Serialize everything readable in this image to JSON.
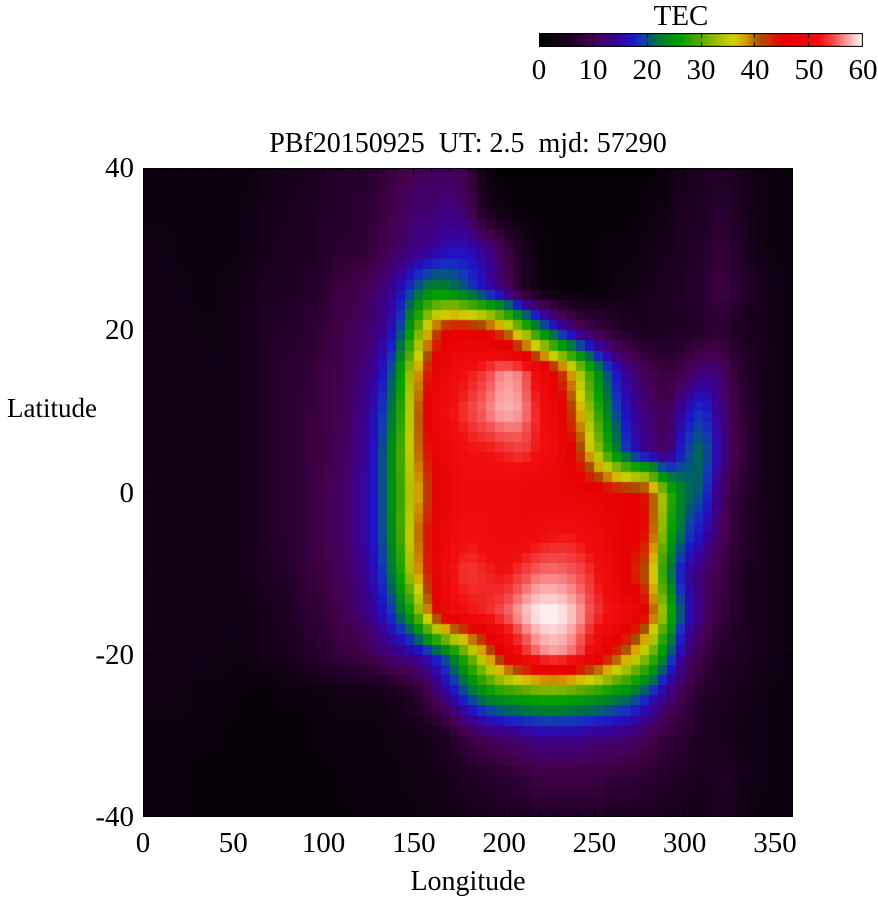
{
  "colorbar": {
    "label": "TEC",
    "tick_labels": [
      "0",
      "10",
      "20",
      "30",
      "40",
      "50",
      "60"
    ],
    "range": [
      0,
      60
    ]
  },
  "plot": {
    "title": "PBf20150925  UT: 2.5  mjd: 57290",
    "xlabel": "Longitude",
    "ylabel": "Latitude",
    "x_tick_labels": [
      "0",
      "50",
      "100",
      "150",
      "200",
      "250",
      "300",
      "350"
    ],
    "x_tick_values": [
      0,
      50,
      100,
      150,
      200,
      250,
      300,
      350
    ],
    "y_tick_labels": [
      "40",
      "20",
      "0",
      "-20",
      "-40"
    ],
    "y_tick_values": [
      40,
      20,
      0,
      -20,
      -40
    ]
  },
  "chart_data": {
    "type": "heatmap",
    "title": "PBf20150925  UT: 2.5  mjd: 57290",
    "xlabel": "Longitude",
    "ylabel": "Latitude",
    "colorbar_label": "TEC",
    "xlim": [
      0,
      360
    ],
    "ylim": [
      -40,
      40
    ],
    "value_range": [
      0,
      60
    ],
    "grid": false,
    "x": [
      0,
      10,
      20,
      30,
      40,
      50,
      60,
      70,
      80,
      90,
      100,
      110,
      120,
      130,
      140,
      150,
      160,
      170,
      180,
      190,
      200,
      210,
      220,
      230,
      240,
      250,
      260,
      270,
      280,
      290,
      300,
      310,
      320,
      330,
      340,
      350,
      360
    ],
    "y": [
      40,
      35,
      30,
      25,
      20,
      15,
      10,
      5,
      0,
      -5,
      -10,
      -15,
      -20,
      -25,
      -30,
      -35,
      -40
    ],
    "values": [
      [
        2,
        2,
        2,
        2,
        2,
        2,
        2,
        4,
        4,
        4,
        5,
        6,
        6,
        7,
        9,
        10,
        11,
        11,
        9,
        2,
        1,
        1,
        1,
        1,
        1,
        1,
        1,
        1,
        1,
        2,
        4,
        5,
        6,
        4,
        3,
        2,
        2
      ],
      [
        2,
        2,
        2,
        2,
        2,
        2,
        3,
        4,
        4,
        5,
        6,
        6,
        7,
        8,
        10,
        12,
        12,
        13,
        11,
        4,
        2,
        1,
        1,
        1,
        1,
        1,
        1,
        1,
        2,
        3,
        5,
        5,
        7,
        5,
        3,
        2,
        2
      ],
      [
        3,
        3,
        2,
        2,
        2,
        2,
        3,
        4,
        5,
        5,
        6,
        7,
        7,
        9,
        11,
        13,
        14,
        16,
        16,
        14,
        10,
        5,
        2,
        1,
        1,
        1,
        2,
        2,
        3,
        4,
        5,
        6,
        8,
        6,
        4,
        2,
        2
      ],
      [
        3,
        3,
        3,
        2,
        2,
        3,
        4,
        5,
        5,
        6,
        7,
        9,
        10,
        12,
        15,
        20,
        24,
        23,
        20,
        16,
        12,
        6,
        2,
        1,
        1,
        1,
        2,
        3,
        4,
        5,
        6,
        7,
        9,
        7,
        4,
        3,
        2
      ],
      [
        3,
        3,
        3,
        3,
        2,
        3,
        4,
        6,
        6,
        7,
        8,
        10,
        11,
        13,
        17,
        28,
        40,
        46,
        46,
        44,
        40,
        32,
        24,
        17,
        12,
        9,
        7,
        5,
        4,
        5,
        5,
        6,
        7,
        5,
        4,
        3,
        2
      ],
      [
        3,
        3,
        3,
        3,
        3,
        3,
        4,
        6,
        7,
        7,
        9,
        10,
        12,
        15,
        22,
        36,
        46,
        50,
        52,
        54,
        57,
        56,
        50,
        44,
        36,
        26,
        18,
        13,
        10,
        8,
        10,
        13,
        12,
        7,
        5,
        3,
        2
      ],
      [
        3,
        3,
        3,
        3,
        3,
        3,
        4,
        6,
        7,
        8,
        9,
        10,
        13,
        17,
        24,
        38,
        48,
        52,
        54,
        56,
        58,
        57,
        52,
        48,
        40,
        30,
        21,
        15,
        12,
        10,
        16,
        19,
        13,
        8,
        5,
        3,
        2
      ],
      [
        3,
        3,
        3,
        3,
        3,
        3,
        4,
        6,
        7,
        8,
        9,
        11,
        13,
        18,
        26,
        38,
        46,
        50,
        52,
        52,
        53,
        54,
        52,
        50,
        44,
        35,
        25,
        17,
        13,
        11,
        19,
        22,
        14,
        9,
        5,
        3,
        2
      ],
      [
        4,
        3,
        3,
        3,
        3,
        3,
        4,
        6,
        7,
        8,
        10,
        11,
        14,
        18,
        26,
        36,
        44,
        48,
        50,
        50,
        50,
        49,
        48,
        48,
        48,
        47,
        46,
        45,
        44,
        30,
        22,
        20,
        12,
        7,
        5,
        3,
        2
      ],
      [
        4,
        3,
        3,
        3,
        3,
        3,
        4,
        6,
        7,
        8,
        10,
        11,
        14,
        18,
        26,
        38,
        46,
        50,
        52,
        51,
        50,
        50,
        51,
        52,
        52,
        50,
        48,
        46,
        44,
        28,
        20,
        16,
        11,
        7,
        4,
        3,
        2
      ],
      [
        4,
        3,
        3,
        3,
        3,
        3,
        4,
        5,
        6,
        8,
        9,
        11,
        13,
        17,
        24,
        36,
        46,
        52,
        54,
        53,
        52,
        54,
        56,
        56,
        55,
        53,
        49,
        44,
        40,
        24,
        15,
        12,
        9,
        6,
        4,
        3,
        2
      ],
      [
        4,
        3,
        3,
        3,
        3,
        3,
        3,
        4,
        5,
        7,
        8,
        10,
        12,
        15,
        20,
        28,
        42,
        50,
        52,
        53,
        55,
        58,
        60,
        60,
        58,
        54,
        52,
        50,
        44,
        30,
        18,
        12,
        8,
        6,
        4,
        3,
        2
      ],
      [
        3,
        3,
        3,
        3,
        3,
        2,
        3,
        4,
        4,
        6,
        7,
        8,
        9,
        11,
        13,
        14,
        17,
        22,
        30,
        38,
        46,
        52,
        56,
        57,
        55,
        50,
        44,
        38,
        32,
        22,
        13,
        9,
        6,
        5,
        4,
        3,
        2
      ],
      [
        3,
        3,
        3,
        2,
        2,
        2,
        1,
        1,
        2,
        2,
        2,
        3,
        3,
        3,
        4,
        6,
        10,
        15,
        20,
        24,
        26,
        27,
        28,
        28,
        27,
        26,
        24,
        22,
        18,
        13,
        9,
        6,
        5,
        4,
        3,
        2,
        2
      ],
      [
        2,
        2,
        2,
        2,
        2,
        1,
        1,
        1,
        1,
        1,
        2,
        2,
        2,
        2,
        3,
        3,
        4,
        6,
        9,
        11,
        12,
        13,
        14,
        14,
        14,
        13,
        13,
        12,
        10,
        8,
        7,
        5,
        4,
        3,
        3,
        2,
        2
      ],
      [
        2,
        2,
        2,
        1,
        1,
        1,
        1,
        1,
        1,
        1,
        1,
        2,
        2,
        2,
        2,
        3,
        3,
        4,
        5,
        6,
        7,
        8,
        9,
        9,
        9,
        9,
        8,
        8,
        7,
        6,
        5,
        4,
        6,
        4,
        3,
        2,
        2
      ],
      [
        2,
        2,
        2,
        1,
        1,
        1,
        1,
        1,
        1,
        1,
        1,
        1,
        2,
        2,
        2,
        2,
        3,
        3,
        4,
        4,
        5,
        5,
        6,
        6,
        6,
        6,
        5,
        5,
        5,
        4,
        4,
        3,
        5,
        4,
        2,
        2,
        2
      ]
    ],
    "palette_stops": [
      [
        0,
        "#000000"
      ],
      [
        6,
        "#230029"
      ],
      [
        10,
        "#46004e"
      ],
      [
        14,
        "#3c0090"
      ],
      [
        17,
        "#1e14c8"
      ],
      [
        19,
        "#1437b9"
      ],
      [
        21,
        "#00645f"
      ],
      [
        23,
        "#008228"
      ],
      [
        26,
        "#00a000"
      ],
      [
        30,
        "#58aa00"
      ],
      [
        33,
        "#a0be00"
      ],
      [
        36,
        "#d2d200"
      ],
      [
        38,
        "#d7a400"
      ],
      [
        40,
        "#c06800"
      ],
      [
        41,
        "#a85000"
      ],
      [
        43,
        "#d22800"
      ],
      [
        45,
        "#e60000"
      ],
      [
        52,
        "#f00e0e"
      ],
      [
        55,
        "#f45454"
      ],
      [
        57,
        "#fb9a9a"
      ],
      [
        60,
        "#ffffff"
      ]
    ],
    "legend_position": "top-right-colorbar"
  }
}
